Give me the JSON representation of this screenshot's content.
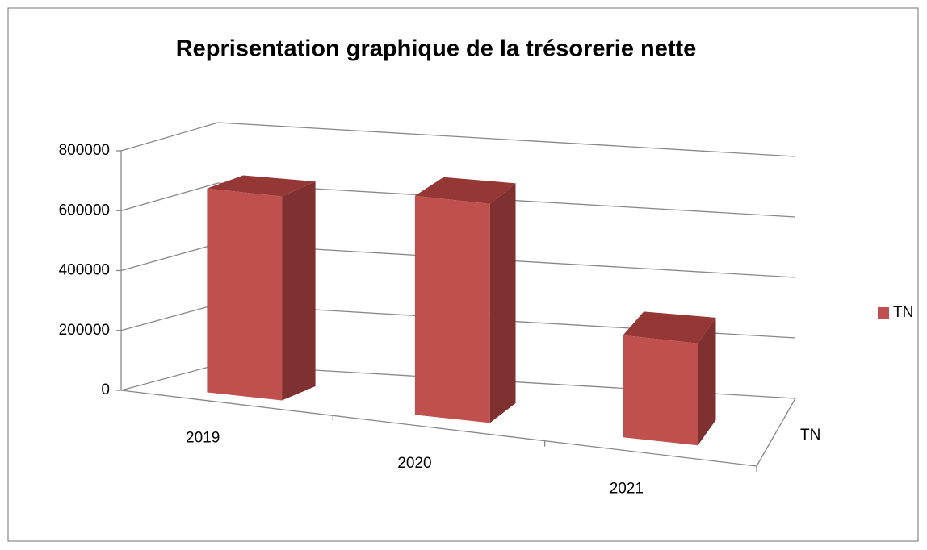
{
  "chart_data": {
    "type": "bar3d",
    "title": "Reprisentation graphique de la trésorerie nette",
    "categories": [
      "2019",
      "2020",
      "2021"
    ],
    "series": [
      {
        "name": "TN",
        "color": "#c0504d",
        "values": [
          680000,
          730000,
          340000
        ]
      }
    ],
    "ylim": [
      0,
      800000
    ],
    "yticks": [
      0,
      200000,
      400000,
      600000,
      800000
    ],
    "grid": true,
    "legend": "right"
  }
}
